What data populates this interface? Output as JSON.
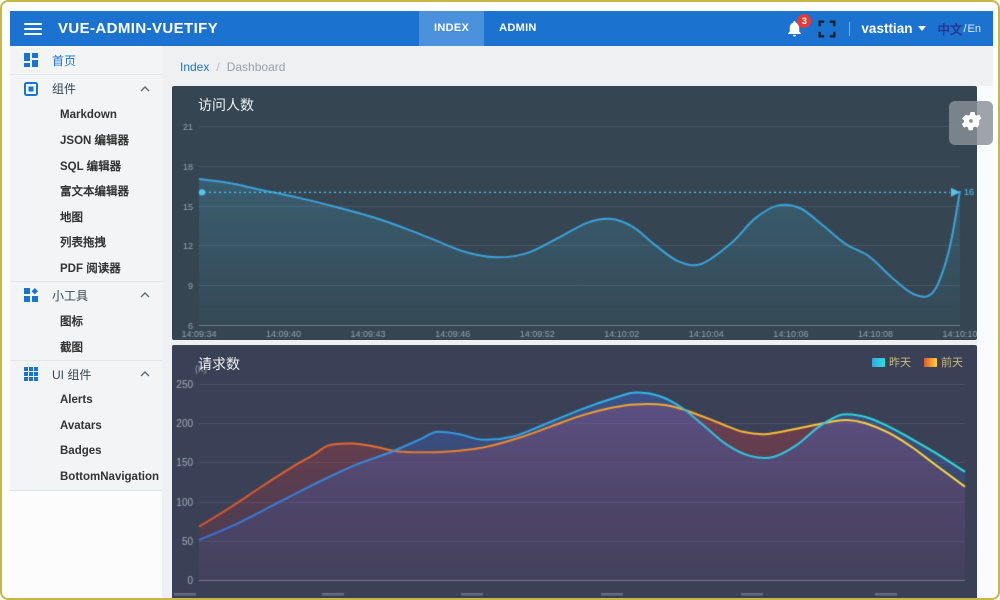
{
  "header": {
    "title": "VUE-ADMIN-VUETIFY",
    "tabs": [
      {
        "label": "INDEX",
        "active": true
      },
      {
        "label": "ADMIN",
        "active": false
      }
    ],
    "notifications": {
      "badge": "3"
    },
    "user": {
      "name": "vasttian"
    },
    "language": {
      "zh": "中文",
      "divider": "/",
      "en": "En"
    },
    "colors": {
      "bar": "#1b72cf",
      "tab_active_bg": "#4a90da",
      "badge": "#e53935"
    }
  },
  "breadcrumb": {
    "items": [
      "Index",
      "Dashboard"
    ],
    "separator": "/"
  },
  "sidebar": {
    "sections": [
      {
        "label": "首页",
        "icon": "dashboard-icon",
        "active": true,
        "children": []
      },
      {
        "label": "组件",
        "icon": "components-icon",
        "expanded": true,
        "children": [
          "Markdown",
          "JSON 编辑器",
          "SQL 编辑器",
          "富文本编辑器",
          "地图",
          "列表拖拽",
          "PDF 阅读器"
        ]
      },
      {
        "label": "小工具",
        "icon": "widgets-icon",
        "expanded": true,
        "children": [
          "图标",
          "截图"
        ]
      },
      {
        "label": "UI 组件",
        "icon": "apps-icon",
        "expanded": true,
        "children": [
          "Alerts",
          "Avatars",
          "Badges",
          "BottomNavigation"
        ]
      }
    ]
  },
  "chart_data": [
    {
      "type": "line",
      "title": "访问人数",
      "ylim": [
        6,
        21
      ],
      "y_ticks": [
        21,
        18,
        15,
        12,
        9,
        6
      ],
      "x_labels": [
        "14:09:34",
        "14:09:40",
        "14:09:43",
        "14:09:46",
        "14:09:52",
        "14:10:02",
        "14:10:04",
        "14:10:06",
        "14:10:08",
        "14:10:10"
      ],
      "grid": true,
      "markline": {
        "value": 16,
        "label": "16",
        "color": "#52c5ee"
      },
      "series": [
        {
          "name": "访问人数",
          "stroke": [
            "#3ba2da"
          ],
          "fill": [
            "rgba(70,170,205,0.32)",
            "rgba(70,170,205,0.03)"
          ],
          "points": [
            [
              0,
              17
            ],
            [
              0.04,
              16.7
            ],
            [
              0.08,
              16.2
            ],
            [
              0.13,
              15.6
            ],
            [
              0.18,
              14.9
            ],
            [
              0.23,
              14.1
            ],
            [
              0.27,
              13.3
            ],
            [
              0.31,
              12.4
            ],
            [
              0.35,
              11.5
            ],
            [
              0.39,
              11.1
            ],
            [
              0.43,
              11.4
            ],
            [
              0.47,
              12.5
            ],
            [
              0.51,
              13.7
            ],
            [
              0.54,
              14.0
            ],
            [
              0.57,
              13.4
            ],
            [
              0.6,
              12.0
            ],
            [
              0.63,
              10.8
            ],
            [
              0.66,
              10.6
            ],
            [
              0.7,
              12.2
            ],
            [
              0.73,
              14.0
            ],
            [
              0.76,
              15.0
            ],
            [
              0.79,
              14.8
            ],
            [
              0.82,
              13.5
            ],
            [
              0.85,
              12.1
            ],
            [
              0.88,
              11.2
            ],
            [
              0.91,
              9.6
            ],
            [
              0.94,
              8.3
            ],
            [
              0.965,
              8.5
            ],
            [
              0.985,
              11.5
            ],
            [
              1,
              16.1
            ]
          ]
        }
      ]
    },
    {
      "type": "line",
      "title": "请求数",
      "y_name": "(K)",
      "ylim": [
        0,
        250
      ],
      "y_ticks": [
        250,
        200,
        150,
        100,
        50,
        0
      ],
      "x_labels_cut_off": true,
      "grid": true,
      "legend": [
        {
          "label": "昨天"
        },
        {
          "label": "前天"
        }
      ],
      "series": [
        {
          "name": "昨天",
          "stroke": [
            "#3a6fd8",
            "#30b0e6",
            "#2ee0d2"
          ],
          "fill": [
            "rgba(60,110,215,0.42)",
            "rgba(55,90,180,0.10)"
          ],
          "points": [
            [
              0,
              51
            ],
            [
              0.05,
              72
            ],
            [
              0.1,
              97
            ],
            [
              0.15,
              122
            ],
            [
              0.2,
              145
            ],
            [
              0.25,
              163
            ],
            [
              0.29,
              180
            ],
            [
              0.31,
              189
            ],
            [
              0.34,
              186
            ],
            [
              0.37,
              179
            ],
            [
              0.41,
              183
            ],
            [
              0.45,
              198
            ],
            [
              0.5,
              218
            ],
            [
              0.545,
              233
            ],
            [
              0.57,
              239
            ],
            [
              0.6,
              235
            ],
            [
              0.63,
              220
            ],
            [
              0.66,
              196
            ],
            [
              0.69,
              172
            ],
            [
              0.72,
              158
            ],
            [
              0.75,
              157
            ],
            [
              0.78,
              172
            ],
            [
              0.81,
              196
            ],
            [
              0.84,
              211
            ],
            [
              0.87,
              208
            ],
            [
              0.9,
              196
            ],
            [
              0.93,
              180
            ],
            [
              0.96,
              163
            ],
            [
              1,
              138
            ]
          ]
        },
        {
          "name": "前天",
          "stroke": [
            "#d94f2b",
            "#f0992f",
            "#ffe13c"
          ],
          "fill": [
            "rgba(205,62,70,0.42)",
            "rgba(150,45,60,0.12)"
          ],
          "points": [
            [
              0,
              68
            ],
            [
              0.04,
              92
            ],
            [
              0.08,
              118
            ],
            [
              0.12,
              143
            ],
            [
              0.15,
              160
            ],
            [
              0.17,
              172
            ],
            [
              0.2,
              174
            ],
            [
              0.23,
              170
            ],
            [
              0.26,
              164
            ],
            [
              0.3,
              163
            ],
            [
              0.34,
              165
            ],
            [
              0.38,
              171
            ],
            [
              0.42,
              182
            ],
            [
              0.46,
              196
            ],
            [
              0.5,
              210
            ],
            [
              0.54,
              220
            ],
            [
              0.57,
              224
            ],
            [
              0.61,
              223
            ],
            [
              0.64,
              215
            ],
            [
              0.68,
              200
            ],
            [
              0.71,
              189
            ],
            [
              0.74,
              186
            ],
            [
              0.78,
              193
            ],
            [
              0.82,
              201
            ],
            [
              0.845,
              204
            ],
            [
              0.87,
              200
            ],
            [
              0.9,
              188
            ],
            [
              0.93,
              170
            ],
            [
              0.96,
              148
            ],
            [
              1,
              119
            ]
          ]
        }
      ]
    }
  ]
}
